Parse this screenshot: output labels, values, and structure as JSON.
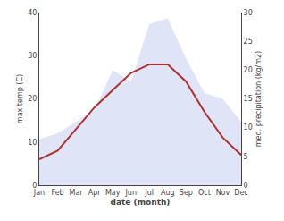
{
  "chart_data": {
    "type": "line",
    "xlabel": "date (month)",
    "ylabel": "max temp (C)",
    "y2label": "med. precipitation (kg/m2)",
    "categories": [
      "Jan",
      "Feb",
      "Mar",
      "Apr",
      "May",
      "Jun",
      "Jul",
      "Aug",
      "Sep",
      "Oct",
      "Nov",
      "Dec"
    ],
    "series": [
      {
        "type": "area",
        "color": "#c5cdf0",
        "axis": "y2",
        "values": [
          8,
          9,
          11,
          13,
          20,
          18,
          28,
          29,
          22,
          16,
          15,
          11
        ]
      },
      {
        "type": "line",
        "color": "#b03030",
        "values": [
          6,
          8,
          13,
          18,
          22,
          26,
          28,
          28,
          24,
          17,
          11,
          7
        ]
      }
    ],
    "ylim": [
      0,
      40
    ],
    "yticks": [
      0,
      10,
      20,
      30,
      40
    ],
    "y2lim": [
      0,
      30
    ],
    "y2ticks": [
      0,
      5,
      10,
      15,
      20,
      25,
      30
    ],
    "grid": false
  }
}
